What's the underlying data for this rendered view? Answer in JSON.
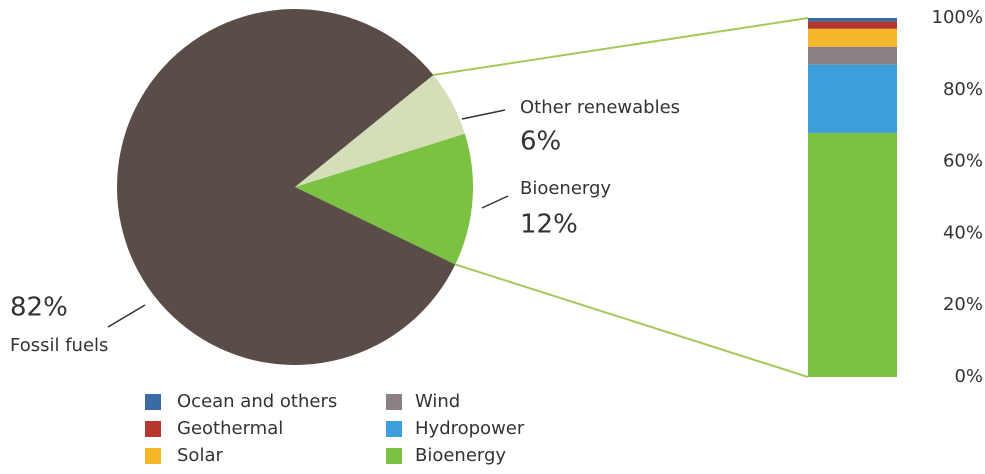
{
  "chart_data": [
    {
      "type": "pie",
      "categories": [
        "Other renewables",
        "Bioenergy",
        "Fossil fuels"
      ],
      "values": [
        6,
        12,
        82
      ],
      "value_labels": [
        "6%",
        "12%",
        "82%"
      ],
      "colors": [
        "#d3dfb8",
        "#7bc142",
        "#5a4d48"
      ]
    },
    {
      "type": "bar",
      "stacked": true,
      "categories": [
        null
      ],
      "series": [
        {
          "name": "Bioenergy",
          "color": "#7bc142",
          "values": [
            68
          ]
        },
        {
          "name": "Hydropower",
          "color": "#3b9fdb",
          "values": [
            19
          ]
        },
        {
          "name": "Wind",
          "color": "#8a8085",
          "values": [
            5
          ]
        },
        {
          "name": "Solar",
          "color": "#f5b82a",
          "values": [
            5
          ]
        },
        {
          "name": "Geothermal",
          "color": "#b5372d",
          "values": [
            2
          ]
        },
        {
          "name": "Ocean and others",
          "color": "#3b6aa8",
          "values": [
            1
          ]
        }
      ],
      "ylim": [
        0,
        100
      ],
      "yticks": [
        {
          "value": 0,
          "label": "0%"
        },
        {
          "value": 20,
          "label": "20%"
        },
        {
          "value": 40,
          "label": "40%"
        },
        {
          "value": 60,
          "label": "60%"
        },
        {
          "value": 80,
          "label": "80%"
        },
        {
          "value": 100,
          "label": "100%"
        }
      ]
    }
  ]
}
